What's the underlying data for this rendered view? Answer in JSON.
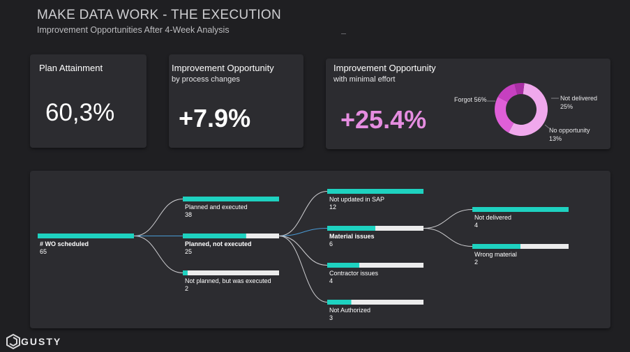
{
  "header": {
    "title": "MAKE DATA WORK - THE EXECUTION",
    "subtitle": "Improvement Opportunities After 4-Week Analysis"
  },
  "cards": {
    "plan_attainment": {
      "title": "Plan Attainment",
      "value": "60,3%"
    },
    "process_changes": {
      "title": "Improvement Opportunity",
      "subtitle": "by process changes",
      "value": "+7.9%"
    },
    "minimal_effort": {
      "title": "Improvement Opportunity",
      "subtitle": "with minimal effort",
      "value": "+25.4%",
      "accent_color": "#e58de0"
    }
  },
  "chart_data": {
    "type": "pie",
    "donut": true,
    "slices": [
      {
        "label": "Forgot",
        "label_text": "Forgot 56%",
        "value": 56,
        "color": "#f0a8ec"
      },
      {
        "label": "Not delivered",
        "label_text": "Not delivered",
        "pct_text": "25%",
        "value": 25,
        "color": "#e05fd8"
      },
      {
        "label": "No opportunity",
        "label_text": "No opportunity",
        "pct_text": "13%",
        "value": 13,
        "color": "#c640c0"
      },
      {
        "label": "",
        "value": 6,
        "color": "#a92fa4"
      }
    ]
  },
  "tree": {
    "bar_fill_color": "#1ed2c0",
    "bar_track_color": "#ececec",
    "nodes": [
      {
        "id": "root",
        "label": "# WO scheduled",
        "value": "65",
        "fill": 1.0,
        "bold": true
      },
      {
        "id": "pe",
        "label": "Planned and executed",
        "value": "38",
        "fill": 1.0,
        "bold": false
      },
      {
        "id": "pne",
        "label": "Planned, not executed",
        "value": "25",
        "fill": 0.658,
        "bold": true
      },
      {
        "id": "npe",
        "label": "Not planned, but was executed",
        "value": "2",
        "fill": 0.05,
        "bold": false
      },
      {
        "id": "sap",
        "label": "Not updated in SAP",
        "value": "12",
        "fill": 1.0,
        "bold": false
      },
      {
        "id": "mi",
        "label": "Material issues",
        "value": "6",
        "fill": 0.5,
        "bold": true
      },
      {
        "id": "ci",
        "label": "Contractor issues",
        "value": "4",
        "fill": 0.333,
        "bold": false
      },
      {
        "id": "na",
        "label": "Not Authorized",
        "value": "3",
        "fill": 0.25,
        "bold": false
      },
      {
        "id": "nd",
        "label": "Not delivered",
        "value": "4",
        "fill": 1.0,
        "bold": false
      },
      {
        "id": "wm",
        "label": "Wrong material",
        "value": "2",
        "fill": 0.5,
        "bold": false
      }
    ]
  },
  "footer": {
    "logo_text": "GUSTY",
    "logo_icon": "cube-logo-icon"
  }
}
